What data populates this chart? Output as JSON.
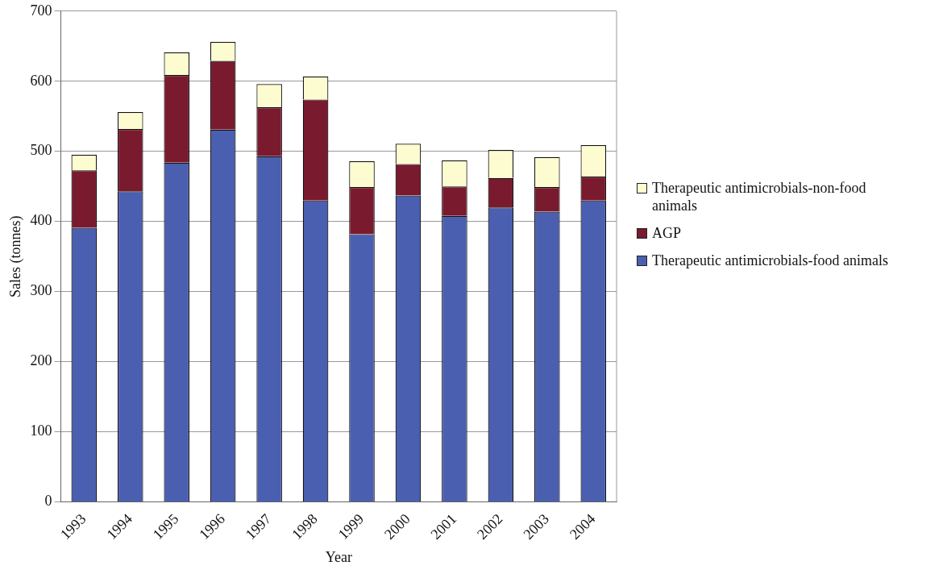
{
  "chart_data": {
    "type": "bar",
    "stacked": true,
    "xlabel": "Year",
    "ylabel": "Sales (tonnes)",
    "categories": [
      "1993",
      "1994",
      "1995",
      "1996",
      "1997",
      "1998",
      "1999",
      "2000",
      "2001",
      "2002",
      "2003",
      "2004"
    ],
    "series": [
      {
        "name": "Therapeutic antimicrobials-food animals",
        "color": "#4a5fb0",
        "values": [
          391,
          443,
          484,
          531,
          493,
          430,
          382,
          437,
          408,
          420,
          414,
          430
        ]
      },
      {
        "name": "AGP",
        "color": "#7a1a2e",
        "values": [
          82,
          89,
          125,
          98,
          70,
          144,
          67,
          45,
          42,
          42,
          35,
          34
        ]
      },
      {
        "name": "Therapeutic antimicrobials-non-food animals",
        "color": "#fdfbd0",
        "values": [
          22,
          24,
          32,
          27,
          33,
          33,
          37,
          29,
          37,
          40,
          43,
          45
        ]
      }
    ],
    "ylim": [
      0,
      700
    ],
    "yticks": [
      0,
      100,
      200,
      300,
      400,
      500,
      600,
      700
    ],
    "grid": "y",
    "legend": "right"
  }
}
